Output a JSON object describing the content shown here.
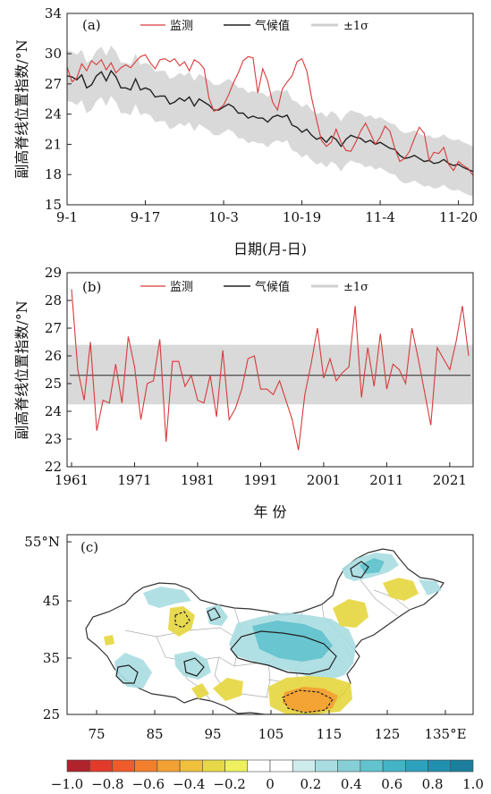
{
  "chart_data": [
    {
      "type": "line",
      "panel_label": "(a)",
      "ylabel": "副高脊线位置指数/°N",
      "xlabel": "日期(月-日)",
      "ylim": [
        15,
        34
      ],
      "yticks": [
        15,
        18,
        21,
        24,
        27,
        30,
        34
      ],
      "x_ticks": [
        "9-1",
        "9-17",
        "10-3",
        "10-19",
        "11-4",
        "11-20"
      ],
      "legend": [
        "监测",
        "气候值",
        "±1σ"
      ],
      "colors": {
        "obs": "#d83a3a",
        "clim": "#222222",
        "band": "#d9d9d9"
      },
      "days": 84,
      "obs": [
        28.7,
        27.2,
        27.6,
        29.0,
        28.3,
        29.3,
        28.9,
        29.4,
        28.4,
        29.1,
        28.1,
        28.6,
        28.9,
        28.6,
        29.2,
        29.7,
        29.9,
        29.1,
        28.5,
        29.4,
        29.5,
        29.2,
        29.5,
        28.8,
        29.2,
        28.3,
        29.4,
        29.1,
        28.5,
        25.6,
        24.3,
        24.5,
        24.9,
        25.9,
        27.1,
        28.1,
        29.3,
        29.7,
        29.6,
        26.1,
        28.5,
        27.3,
        25.2,
        24.4,
        26.5,
        27.2,
        27.8,
        29.2,
        29.5,
        28.3,
        25.6,
        23.4,
        21.4,
        20.8,
        21.2,
        22.5,
        21.2,
        20.4,
        20.3,
        21.2,
        22.3,
        23.1,
        22.1,
        21.0,
        21.7,
        22.8,
        22.3,
        20.6,
        19.3,
        19.6,
        20.3,
        21.6,
        22.7,
        22.1,
        19.4,
        20.2,
        20.1,
        20.7,
        19.0,
        18.4,
        19.3,
        18.9,
        18.6,
        17.9
      ],
      "clim": [
        27.8,
        27.7,
        27.4,
        27.9,
        26.6,
        26.9,
        27.8,
        28.2,
        27.3,
        28.3,
        27.7,
        26.6,
        26.6,
        26.4,
        27.5,
        26.4,
        26.6,
        26.4,
        25.7,
        25.8,
        25.8,
        25.0,
        25.2,
        25.6,
        25.3,
        25.7,
        24.8,
        25.5,
        25.2,
        24.9,
        24.4,
        24.4,
        24.7,
        25.0,
        24.7,
        24.1,
        24.1,
        23.6,
        23.8,
        23.6,
        23.6,
        23.2,
        23.7,
        23.9,
        23.7,
        23.9,
        22.9,
        22.7,
        22.2,
        22.5,
        21.9,
        21.5,
        21.7,
        21.2,
        21.8,
        21.5,
        20.8,
        21.5,
        21.9,
        21.7,
        21.6,
        21.2,
        21.4,
        21.0,
        21.2,
        20.9,
        20.6,
        20.5,
        19.9,
        19.6,
        19.7,
        19.9,
        19.6,
        19.3,
        19.4,
        19.1,
        19.2,
        19.5,
        19.1,
        18.9,
        19.0,
        18.7,
        18.5,
        18.3
      ],
      "sd": 2.5
    },
    {
      "type": "line",
      "panel_label": "(b)",
      "ylabel": "副高脊线位置指数/°N",
      "xlabel": "年 份",
      "ylim": [
        22,
        29
      ],
      "yticks": [
        22,
        23,
        24,
        25,
        26,
        27,
        28,
        29
      ],
      "x_ticks": [
        "1961",
        "1971",
        "1981",
        "1991",
        "2001",
        "2011",
        "2021"
      ],
      "legend": [
        "监测",
        "气候值",
        "±1σ"
      ],
      "year_range": [
        1961,
        2024
      ],
      "clim": 25.3,
      "band": [
        24.25,
        26.4
      ],
      "colors": {
        "obs": "#d83a3a",
        "clim": "#555555",
        "band": "#d9d9d9"
      },
      "obs": [
        28.4,
        25.5,
        24.4,
        26.5,
        23.3,
        24.4,
        24.3,
        25.7,
        24.3,
        26.7,
        25.6,
        23.7,
        25.0,
        25.1,
        26.6,
        22.9,
        25.8,
        25.8,
        24.9,
        25.3,
        24.4,
        24.3,
        25.3,
        23.8,
        26.2,
        23.7,
        24.1,
        24.8,
        25.9,
        26.0,
        24.8,
        24.8,
        24.6,
        25.1,
        24.4,
        23.7,
        22.6,
        24.6,
        25.7,
        27.0,
        25.2,
        25.9,
        25.1,
        25.4,
        25.6,
        27.8,
        24.5,
        26.3,
        24.9,
        26.8,
        24.8,
        25.7,
        25.5,
        25.0,
        27.0,
        25.9,
        24.7,
        23.5,
        26.3,
        25.9,
        25.5,
        26.5,
        27.8,
        26.0
      ]
    },
    {
      "type": "heatmap",
      "panel_label": "(c)",
      "x_ticks": [
        "75",
        "85",
        "95",
        "105",
        "115",
        "125",
        "135°E"
      ],
      "y_ticks": [
        "25",
        "35",
        "45",
        "55°N"
      ],
      "colorbar": {
        "ticks": [
          "−1.0",
          "−0.8",
          "−0.6",
          "−0.4",
          "−0.2",
          "0",
          "0.2",
          "0.4",
          "0.6",
          "0.8",
          "1.0"
        ],
        "colors": [
          "#b0232a",
          "#e13a2b",
          "#ee5c2c",
          "#f17f2e",
          "#f3a134",
          "#eec03c",
          "#e7d847",
          "#eef05e",
          "#ffffff",
          "#ffffff",
          "#cfecec",
          "#a9dde1",
          "#86cfd6",
          "#62c2cd",
          "#45b3c6",
          "#2ea2bd",
          "#218fae",
          "#1c7e9c"
        ]
      }
    }
  ]
}
